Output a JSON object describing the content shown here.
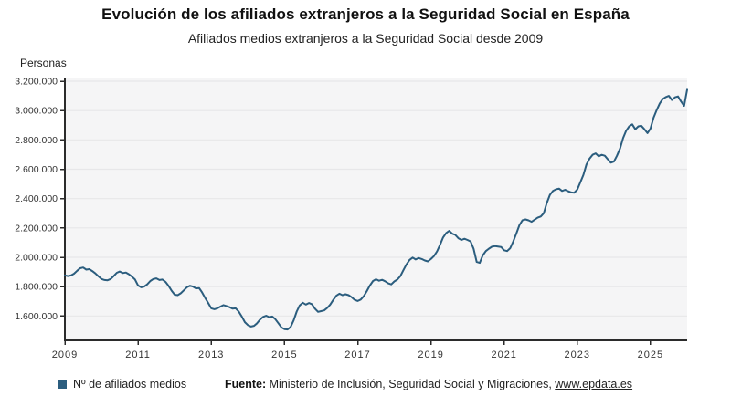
{
  "header": {
    "title": "Evolución de los afiliados extranjeros a la Seguridad Social en España",
    "subtitle": "Afiliados medios extranjeros a la Seguridad Social desde 2009"
  },
  "chart_data": {
    "type": "line",
    "title": "Evolución de los afiliados extranjeros a la Seguridad Social en España",
    "subtitle": "Afiliados medios extranjeros a la Seguridad Social desde 2009",
    "unit_label": "Personas",
    "grid": true,
    "legend_position": "bottom-left",
    "plot_background": "#f5f5f6",
    "gridline_color": "#e7e7e9",
    "axis_color": "#2b2b2b",
    "x_ticks": [
      2009,
      2011,
      2013,
      2015,
      2017,
      2019,
      2021,
      2023,
      2025
    ],
    "x_range": {
      "start": "2009-01",
      "end": "2026-01",
      "frequency": "monthly"
    },
    "y_axis": {
      "min": 1433000,
      "max": 3225000
    },
    "y_ticks": [
      {
        "value": 1600000,
        "label": "1.600.000"
      },
      {
        "value": 1800000,
        "label": "1.800.000"
      },
      {
        "value": 2000000,
        "label": "2.000.000"
      },
      {
        "value": 2200000,
        "label": "2.200.000"
      },
      {
        "value": 2400000,
        "label": "2.400.000"
      },
      {
        "value": 2600000,
        "label": "2.600.000"
      },
      {
        "value": 2800000,
        "label": "2.800.000"
      },
      {
        "value": 3000000,
        "label": "3.000.000"
      },
      {
        "value": 3200000,
        "label": "3.200.000"
      }
    ],
    "series": [
      {
        "name": "Nº de afiliados medios",
        "color": "#2b5d7e",
        "values": [
          1877000,
          1872000,
          1876000,
          1888000,
          1908000,
          1925000,
          1930000,
          1916000,
          1919000,
          1906000,
          1890000,
          1870000,
          1852000,
          1845000,
          1843000,
          1852000,
          1872000,
          1894000,
          1903000,
          1892000,
          1896000,
          1884000,
          1868000,
          1848000,
          1808000,
          1795000,
          1800000,
          1815000,
          1838000,
          1852000,
          1856000,
          1845000,
          1848000,
          1832000,
          1805000,
          1772000,
          1745000,
          1742000,
          1755000,
          1775000,
          1795000,
          1806000,
          1800000,
          1788000,
          1790000,
          1760000,
          1722000,
          1688000,
          1652000,
          1646000,
          1652000,
          1664000,
          1674000,
          1668000,
          1660000,
          1650000,
          1652000,
          1630000,
          1596000,
          1558000,
          1538000,
          1528000,
          1533000,
          1550000,
          1575000,
          1594000,
          1602000,
          1592000,
          1596000,
          1578000,
          1550000,
          1522000,
          1510000,
          1508000,
          1525000,
          1570000,
          1630000,
          1672000,
          1690000,
          1678000,
          1688000,
          1680000,
          1650000,
          1628000,
          1633000,
          1638000,
          1655000,
          1678000,
          1710000,
          1738000,
          1752000,
          1742000,
          1748000,
          1742000,
          1728000,
          1710000,
          1702000,
          1712000,
          1735000,
          1770000,
          1808000,
          1838000,
          1850000,
          1840000,
          1846000,
          1836000,
          1822000,
          1815000,
          1835000,
          1848000,
          1872000,
          1912000,
          1952000,
          1982000,
          1998000,
          1985000,
          1995000,
          1988000,
          1978000,
          1972000,
          1988000,
          2008000,
          2040000,
          2085000,
          2135000,
          2165000,
          2180000,
          2160000,
          2152000,
          2130000,
          2118000,
          2126000,
          2118000,
          2108000,
          2058000,
          1968000,
          1962000,
          2012000,
          2042000,
          2058000,
          2072000,
          2076000,
          2073000,
          2070000,
          2048000,
          2042000,
          2062000,
          2108000,
          2162000,
          2218000,
          2252000,
          2258000,
          2252000,
          2242000,
          2256000,
          2270000,
          2278000,
          2300000,
          2370000,
          2425000,
          2452000,
          2463000,
          2468000,
          2452000,
          2460000,
          2450000,
          2442000,
          2440000,
          2462000,
          2512000,
          2562000,
          2632000,
          2672000,
          2698000,
          2708000,
          2688000,
          2698000,
          2692000,
          2668000,
          2645000,
          2652000,
          2692000,
          2742000,
          2812000,
          2862000,
          2892000,
          2906000,
          2872000,
          2892000,
          2896000,
          2872000,
          2846000,
          2878000,
          2952000,
          3002000,
          3048000,
          3078000,
          3092000,
          3100000,
          3072000,
          3090000,
          3096000,
          3062000,
          3032000,
          3142000
        ]
      }
    ]
  },
  "footer": {
    "legend": {
      "marker_color": "#2b5d7e",
      "label": "Nº de afiliados medios"
    },
    "source_label": "Fuente:",
    "source_text": "Ministerio de Inclusión, Seguridad Social y Migraciones, ",
    "source_link": "www.epdata.es"
  }
}
